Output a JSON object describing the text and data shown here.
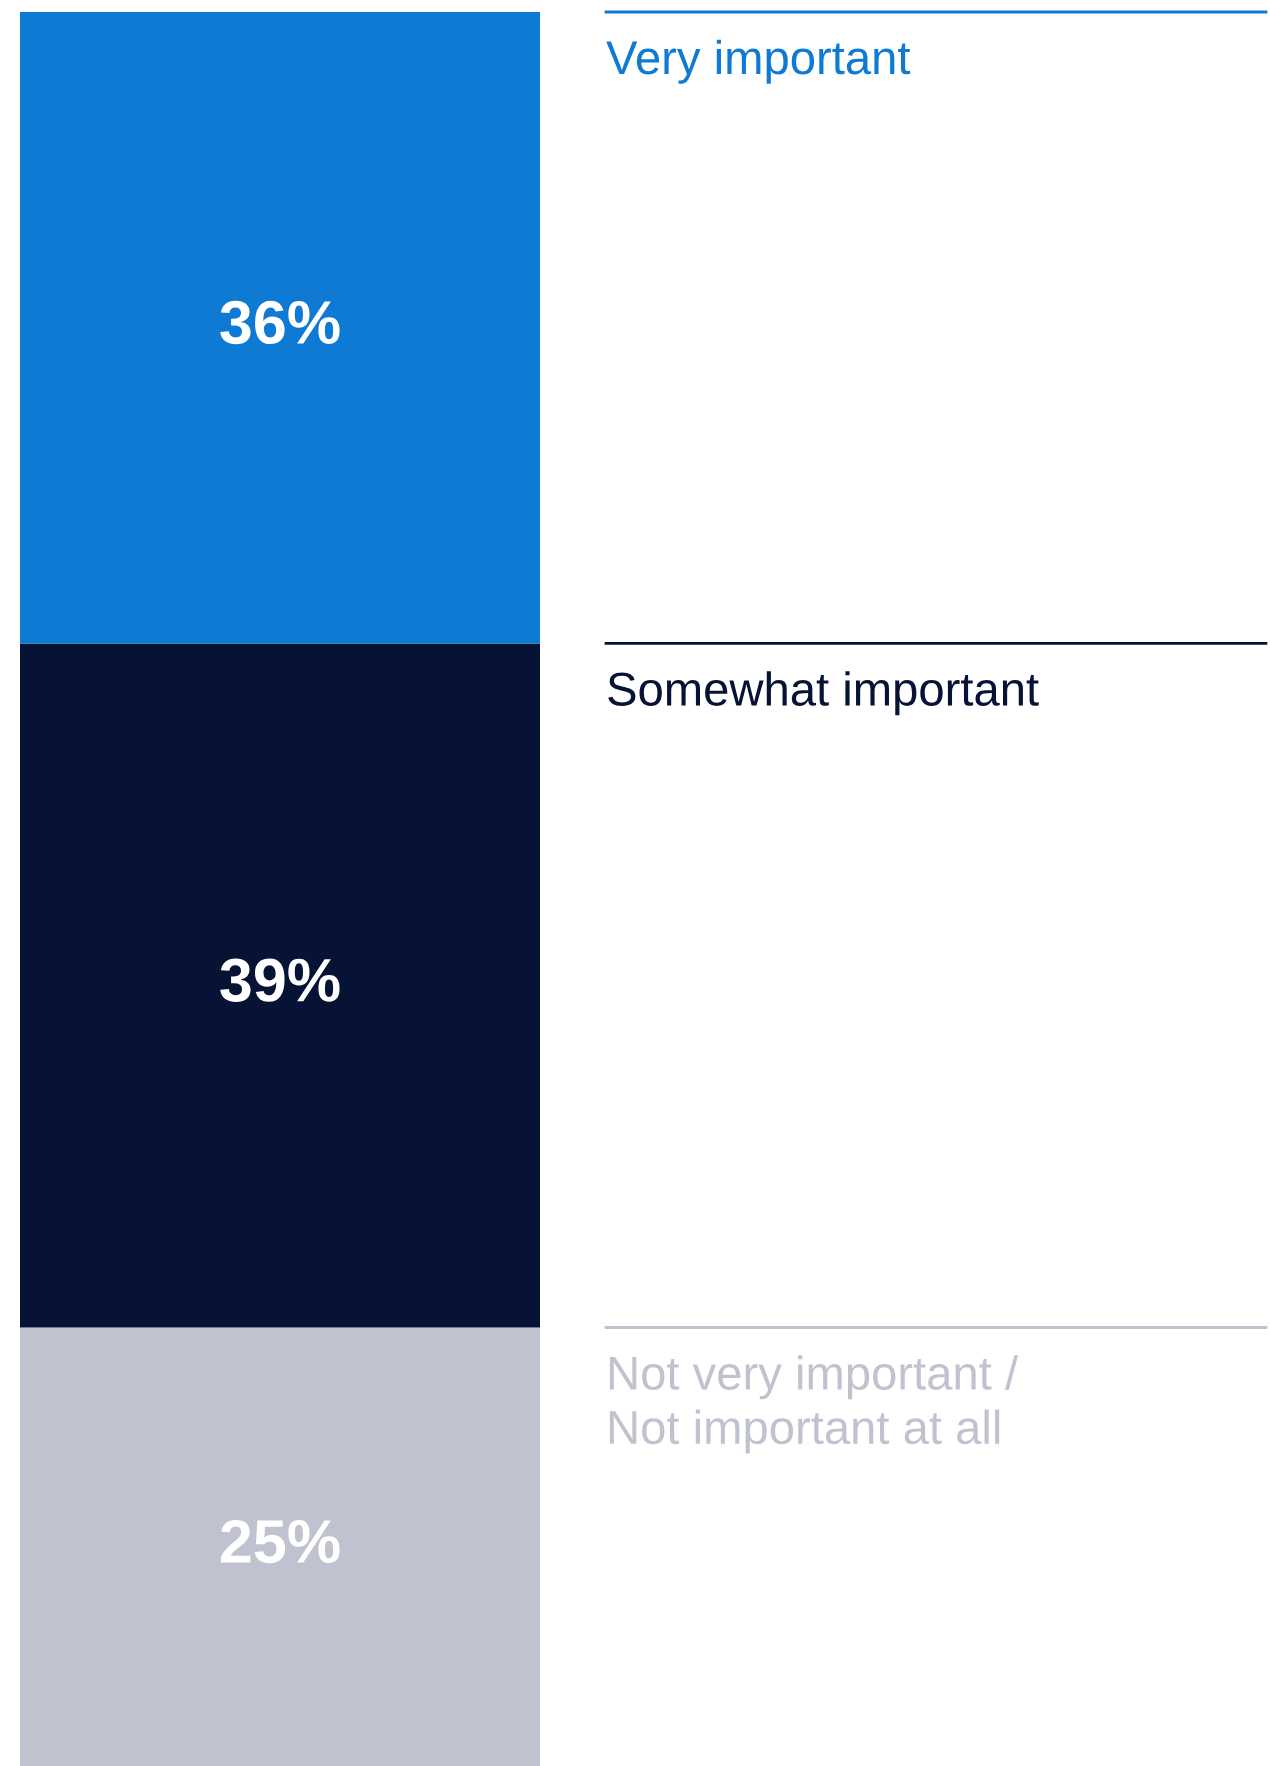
{
  "chart_data": {
    "type": "bar",
    "stacked": true,
    "categories": [
      null
    ],
    "series": [
      {
        "name": "Not very important /\nNot important at all",
        "color": "#c0c3cf",
        "values": [
          25
        ],
        "value_labels": [
          "25%"
        ]
      },
      {
        "name": "Somewhat important",
        "color": "#071335",
        "values": [
          39
        ],
        "value_labels": [
          "39%"
        ]
      },
      {
        "name": "Very important",
        "color": "#0f7ad4",
        "values": [
          36
        ],
        "value_labels": [
          "36%"
        ]
      }
    ]
  }
}
